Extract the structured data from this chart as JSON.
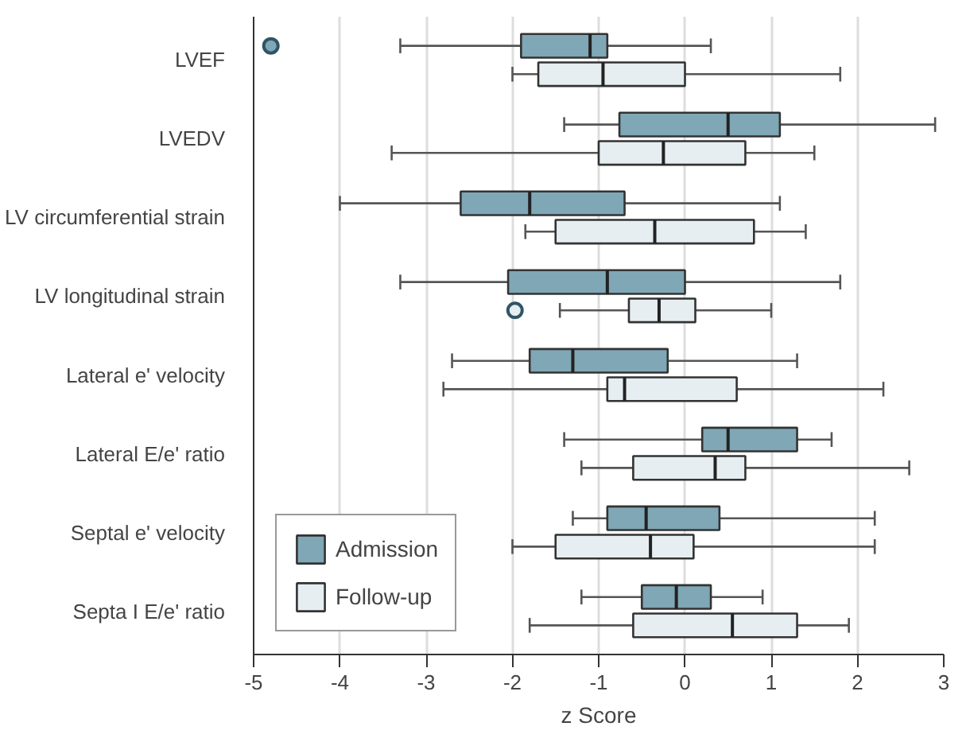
{
  "chart_data": {
    "type": "box",
    "orientation": "horizontal",
    "xlabel": "z Score",
    "categories": [
      "LVEF",
      "LVEDV",
      "LV circumferential strain",
      "LV longitudinal strain",
      "Lateral e' velocity",
      "Lateral E/e' ratio",
      "Septal e' velocity",
      "Septa I E/e' ratio"
    ],
    "xlim": [
      -5,
      3
    ],
    "xticks": [
      -5,
      -4,
      -3,
      -2,
      -1,
      0,
      1,
      2,
      3
    ],
    "grid": "x",
    "legend": "bottom left",
    "series": [
      {
        "name": "Admission",
        "color": "#7fa7b5",
        "boxes": [
          {
            "low": -3.3,
            "q1": -1.9,
            "median": -1.1,
            "q3": -0.9,
            "high": 0.3,
            "outliers": [
              -4.8
            ]
          },
          {
            "low": -1.4,
            "q1": -0.76,
            "median": 0.5,
            "q3": 1.1,
            "high": 2.9
          },
          {
            "low": -4.0,
            "q1": -2.6,
            "median": -1.8,
            "q3": -0.7,
            "high": 1.1
          },
          {
            "low": -3.3,
            "q1": -2.05,
            "median": -0.9,
            "q3": 0,
            "high": 1.8
          },
          {
            "low": -2.7,
            "q1": -1.8,
            "median": -1.3,
            "q3": -0.2,
            "high": 1.3
          },
          {
            "low": -1.4,
            "q1": 0.2,
            "median": 0.5,
            "q3": 1.3,
            "high": 1.7
          },
          {
            "low": -1.3,
            "q1": -0.9,
            "median": -0.45,
            "q3": 0.4,
            "high": 2.2
          },
          {
            "low": -1.2,
            "q1": -0.5,
            "median": -0.1,
            "q3": 0.3,
            "high": 0.9
          }
        ]
      },
      {
        "name": "Follow-up",
        "color": "#e6eef2",
        "boxes": [
          {
            "low": -2.0,
            "q1": -1.7,
            "median": -0.95,
            "q3": 0,
            "high": 1.8
          },
          {
            "low": -3.4,
            "q1": -1.0,
            "median": -0.25,
            "q3": 0.7,
            "high": 1.5
          },
          {
            "low": -1.85,
            "q1": -1.5,
            "median": -0.35,
            "q3": 0.8,
            "high": 1.4
          },
          {
            "low": -1.45,
            "q1": -0.65,
            "median": -0.3,
            "q3": 0.12,
            "high": 1.0,
            "outliers": [
              -1.97
            ]
          },
          {
            "low": -2.8,
            "q1": -0.9,
            "median": -0.7,
            "q3": 0.6,
            "high": 2.3
          },
          {
            "low": -1.2,
            "q1": -0.6,
            "median": 0.35,
            "q3": 0.7,
            "high": 2.6
          },
          {
            "low": -2.0,
            "q1": -1.5,
            "median": -0.4,
            "q3": 0.1,
            "high": 2.2
          },
          {
            "low": -1.8,
            "q1": -0.6,
            "median": 0.55,
            "q3": 1.3,
            "high": 1.9
          }
        ]
      }
    ]
  }
}
